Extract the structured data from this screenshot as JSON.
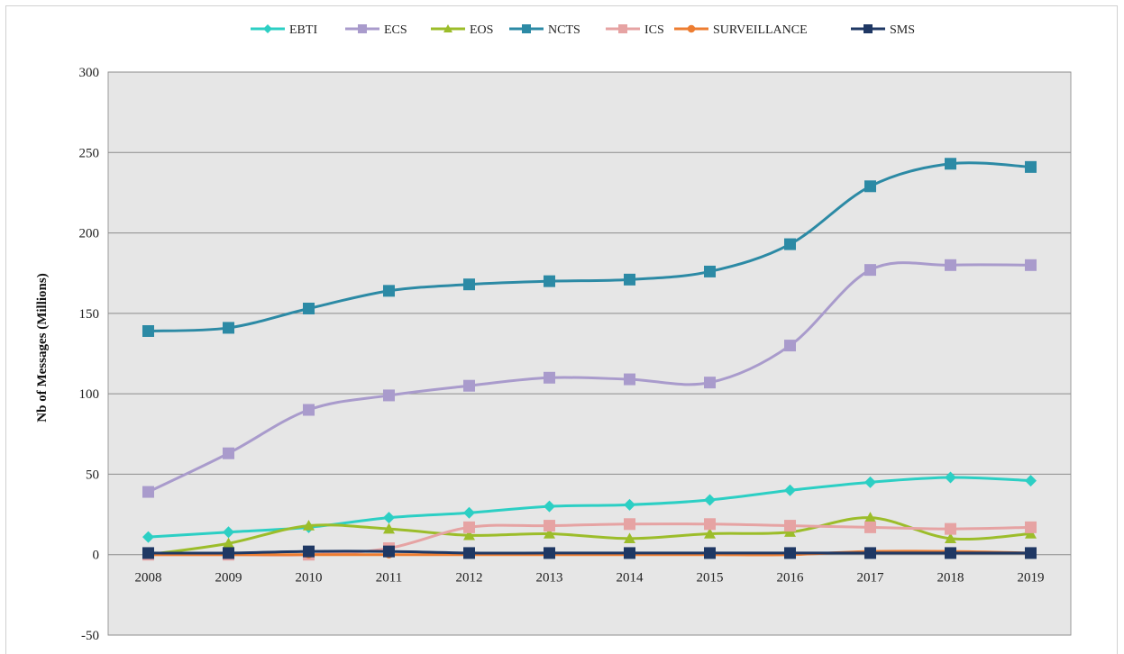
{
  "chart_data": {
    "type": "line",
    "title": "",
    "xlabel": "",
    "ylabel": "Nb of Messages (Millions)",
    "x": [
      "2008",
      "2009",
      "2010",
      "2011",
      "2012",
      "2013",
      "2014",
      "2015",
      "2016",
      "2017",
      "2018",
      "2019"
    ],
    "ylim": [
      -50,
      300
    ],
    "yticks": [
      "300",
      "250",
      "200",
      "150",
      "100",
      "50",
      "0",
      "-50"
    ],
    "grid": "horizontal",
    "legend": "top",
    "plot_background": "#e6e6e6",
    "series": [
      {
        "name": "EBTI",
        "color": "#2ccfc4",
        "marker": "diamond",
        "values": [
          11,
          14,
          17,
          23,
          26,
          30,
          31,
          34,
          40,
          45,
          48,
          46
        ]
      },
      {
        "name": "ECS",
        "color": "#a99bcc",
        "marker": "square",
        "values": [
          39,
          63,
          90,
          99,
          105,
          110,
          109,
          107,
          130,
          177,
          180,
          180
        ]
      },
      {
        "name": "EOS",
        "color": "#9cbd2a",
        "marker": "triangle",
        "values": [
          0,
          7,
          18,
          16,
          12,
          13,
          10,
          13,
          14,
          23,
          10,
          13
        ]
      },
      {
        "name": "NCTS",
        "color": "#2c8aa5",
        "marker": "square",
        "values": [
          139,
          141,
          153,
          164,
          168,
          170,
          171,
          176,
          193,
          229,
          243,
          241
        ]
      },
      {
        "name": "ICS",
        "color": "#e6a3a3",
        "marker": "square",
        "values": [
          0,
          0,
          0,
          4,
          17,
          18,
          19,
          19,
          18,
          17,
          16,
          17
        ]
      },
      {
        "name": "SURVEILLANCE",
        "color": "#ed7d31",
        "marker": "circle",
        "values": [
          0,
          0,
          0,
          0,
          0,
          0,
          0,
          0,
          0,
          2,
          2,
          1
        ]
      },
      {
        "name": "SMS",
        "color": "#1f3864",
        "marker": "square",
        "values": [
          1,
          1,
          2,
          2,
          1,
          1,
          1,
          1,
          1,
          1,
          1,
          1
        ]
      }
    ]
  }
}
